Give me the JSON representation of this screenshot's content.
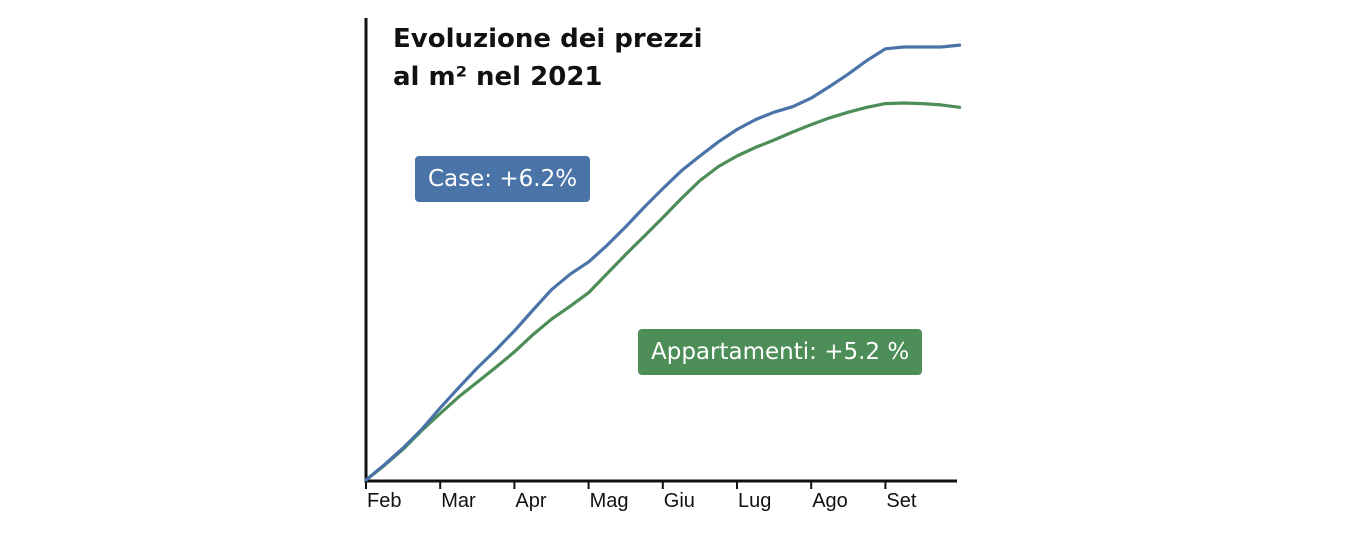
{
  "chart_data": {
    "type": "line",
    "title": "Evoluzione dei prezzi al m² nel 2021",
    "categories": [
      "Feb",
      "Mar",
      "Apr",
      "Mag",
      "Giu",
      "Lug",
      "Ago",
      "Set"
    ],
    "x": [
      0,
      0.25,
      0.5,
      0.75,
      1,
      1.25,
      1.5,
      1.75,
      2,
      2.25,
      2.5,
      2.75,
      3,
      3.25,
      3.5,
      3.75,
      4,
      4.25,
      4.5,
      4.75,
      5,
      5.25,
      5.5,
      5.75,
      6,
      6.25,
      6.5,
      6.75,
      7,
      7.25,
      7.5,
      7.75,
      8
    ],
    "series": [
      {
        "label": "Case: +6.2%",
        "color": "#4a74a8",
        "values": [
          0.0,
          0.25,
          0.52,
          0.82,
          1.17,
          1.5,
          1.82,
          2.11,
          2.42,
          2.76,
          3.09,
          3.34,
          3.54,
          3.81,
          4.11,
          4.43,
          4.73,
          5.02,
          5.26,
          5.49,
          5.69,
          5.85,
          5.97,
          6.06,
          6.2,
          6.39,
          6.59,
          6.81,
          7.0,
          7.03,
          7.03,
          7.03,
          7.06
        ]
      },
      {
        "label": "Appartamenti: +5.2 %",
        "color": "#4c8d58",
        "values": [
          0.0,
          0.24,
          0.5,
          0.8,
          1.08,
          1.35,
          1.59,
          1.83,
          2.08,
          2.36,
          2.61,
          2.82,
          3.04,
          3.35,
          3.66,
          3.96,
          4.26,
          4.57,
          4.86,
          5.09,
          5.26,
          5.4,
          5.52,
          5.65,
          5.77,
          5.88,
          5.97,
          6.05,
          6.11,
          6.12,
          6.11,
          6.09,
          6.05
        ]
      }
    ],
    "ylim": [
      0,
      7.5
    ],
    "grid": false
  }
}
